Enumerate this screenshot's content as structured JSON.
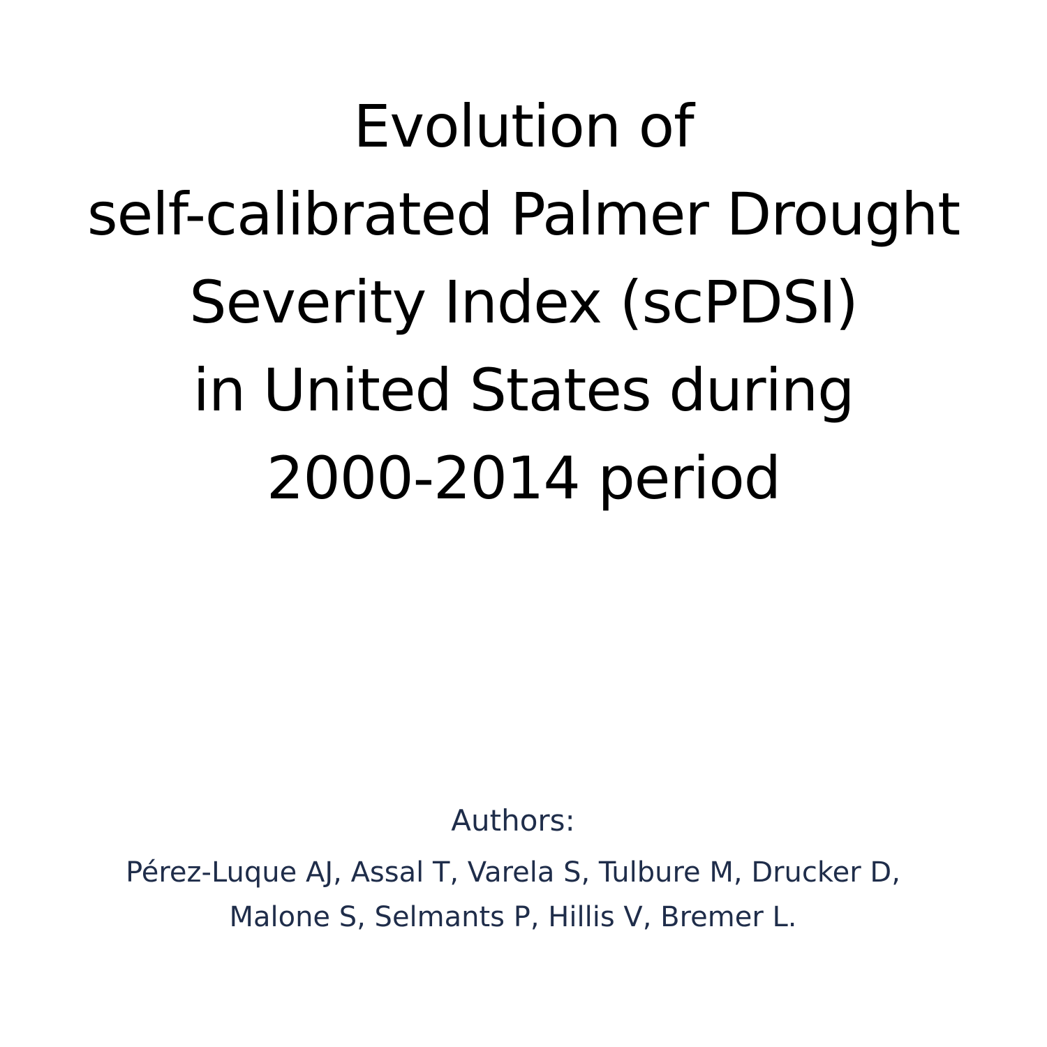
{
  "title": {
    "lines": [
      "Evolution of",
      "self-calibrated Palmer Drought",
      "Severity Index (scPDSI)",
      "in United States during",
      "2000-2014 period"
    ]
  },
  "authors": {
    "heading": "Authors:",
    "lines": [
      "Pérez-Luque AJ, Assal T, Varela S, Tulbure M, Drucker D,",
      "Malone S, Selmants P, Hillis V, Bremer L."
    ]
  },
  "colors": {
    "title_text": "#000000",
    "authors_text": "#1f2d4a",
    "background": "#ffffff"
  }
}
